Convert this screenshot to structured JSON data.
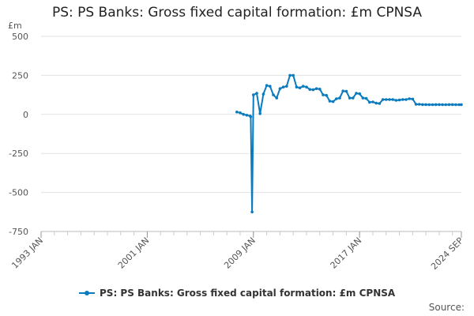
{
  "chart_data": {
    "type": "line",
    "title": "PS: PS Banks: Gross fixed capital formation: £m CPNSA",
    "ylabel": "£m",
    "xlabel": "",
    "ylim": [
      -750,
      500
    ],
    "yticks": [
      500,
      250,
      0,
      -250,
      -500,
      -750
    ],
    "ytick_labels": [
      "500",
      "250",
      "0",
      "-250",
      "-500",
      "-750"
    ],
    "xlim": [
      1993.0,
      2024.67
    ],
    "xticks": [
      1993.0,
      2001.0,
      2009.0,
      2017.0,
      2024.67
    ],
    "xtick_labels": [
      "1993 JAN",
      "2001 JAN",
      "2009 JAN",
      "2017 JAN",
      "2024 SEP"
    ],
    "grid": true,
    "legend_position": "bottom",
    "color": "#0a7bbd",
    "series": [
      {
        "name": "PS: PS Banks: Gross fixed capital formation: £m CPNSA",
        "x": [
          2007.75,
          2008.0,
          2008.25,
          2008.5,
          2008.75,
          2008.8,
          2008.9,
          2009.0,
          2009.25,
          2009.5,
          2009.75,
          2010.0,
          2010.25,
          2010.5,
          2010.75,
          2011.0,
          2011.25,
          2011.5,
          2011.75,
          2012.0,
          2012.25,
          2012.5,
          2012.75,
          2013.0,
          2013.25,
          2013.5,
          2013.75,
          2014.0,
          2014.25,
          2014.5,
          2014.75,
          2015.0,
          2015.25,
          2015.5,
          2015.75,
          2016.0,
          2016.25,
          2016.5,
          2016.75,
          2017.0,
          2017.25,
          2017.5,
          2017.75,
          2018.0,
          2018.25,
          2018.5,
          2018.75,
          2019.0,
          2019.25,
          2019.5,
          2019.75,
          2020.0,
          2020.25,
          2020.5,
          2020.75,
          2021.0,
          2021.25,
          2021.5,
          2021.75,
          2022.0,
          2022.25,
          2022.5,
          2022.75,
          2023.0,
          2023.25,
          2023.5,
          2023.75,
          2024.0,
          2024.25,
          2024.5,
          2024.67
        ],
        "values": [
          15,
          10,
          0,
          -5,
          -10,
          -15,
          -625,
          125,
          135,
          5,
          130,
          185,
          180,
          125,
          105,
          165,
          175,
          180,
          250,
          250,
          175,
          170,
          180,
          175,
          160,
          158,
          165,
          162,
          125,
          122,
          85,
          82,
          100,
          105,
          150,
          148,
          105,
          105,
          135,
          132,
          105,
          102,
          78,
          80,
          72,
          70,
          95,
          95,
          95,
          95,
          90,
          92,
          95,
          95,
          100,
          98,
          65,
          65,
          63,
          63,
          62,
          62,
          63,
          63,
          62,
          62,
          63,
          63,
          62,
          62,
          63
        ]
      }
    ]
  },
  "source_label": "Source:"
}
